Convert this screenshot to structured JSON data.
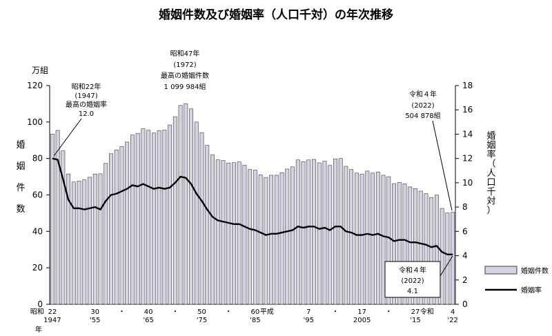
{
  "title": "婚姻件数及び婚姻率（人口千対）の年次推移",
  "y_left_unit": "万組",
  "y_left_label_chars": [
    "婚",
    "姻",
    "件",
    "数"
  ],
  "y_right_label_chars": [
    "婚",
    "姻",
    "率",
    "（",
    "人",
    "口",
    "千",
    "対",
    "）"
  ],
  "legend": {
    "bars": "婚姻件数",
    "line": "婚姻率"
  },
  "x_labels_top": [
    {
      "year": 1947,
      "text": "22"
    },
    {
      "year": 1955,
      "text": "30"
    },
    {
      "year": 1960,
      "text": "・"
    },
    {
      "year": 1965,
      "text": "40"
    },
    {
      "year": 1970,
      "text": "・"
    },
    {
      "year": 1975,
      "text": "50"
    },
    {
      "year": 1980,
      "text": "・"
    },
    {
      "year": 1985,
      "text": "60"
    },
    {
      "year": 1995,
      "text": "7"
    },
    {
      "year": 2000,
      "text": "・"
    },
    {
      "year": 2005,
      "text": "17"
    },
    {
      "year": 2010,
      "text": "・"
    },
    {
      "year": 2015,
      "text": "27"
    },
    {
      "year": 2022,
      "text": "4"
    }
  ],
  "x_labels_bottom": [
    {
      "year": 1947,
      "text": "1947"
    },
    {
      "year": 1955,
      "text": "'55"
    },
    {
      "year": 1965,
      "text": "'65"
    },
    {
      "year": 1975,
      "text": "'75"
    },
    {
      "year": 1985,
      "text": "'85"
    },
    {
      "year": 1995,
      "text": "'95"
    },
    {
      "year": 2005,
      "text": "2005"
    },
    {
      "year": 2015,
      "text": "'15"
    },
    {
      "year": 2022,
      "text": "'22"
    }
  ],
  "era_labels": [
    {
      "year": 1947,
      "text": "昭和",
      "row": "left"
    },
    {
      "year": 1989,
      "text": "平成",
      "row": "top"
    },
    {
      "year": 2019,
      "text": "令和",
      "row": "top"
    }
  ],
  "x_axis_suffix": "年",
  "annotations": {
    "peak_rate": [
      "昭和22年",
      "(1947)",
      "最高の婚姻率",
      "12.0"
    ],
    "peak_count": [
      "昭和47年",
      "(1972)",
      "最高の婚姻件数",
      "1 099 984組"
    ],
    "latest_count": [
      "令和４年",
      "(2022)",
      "504 878組"
    ],
    "latest_rate": [
      "令和４年",
      "(2022)",
      "4.1"
    ]
  },
  "colors": {
    "bar_fill": "#d6d2e4",
    "bar_stroke": "#3a3a3a",
    "line": "#000000",
    "axis": "#000000"
  },
  "chart_data": {
    "type": "bar+line",
    "title": "婚姻件数及び婚姻率（人口千対）の年次推移",
    "x": [
      1947,
      1948,
      1949,
      1950,
      1951,
      1952,
      1953,
      1954,
      1955,
      1956,
      1957,
      1958,
      1959,
      1960,
      1961,
      1962,
      1963,
      1964,
      1965,
      1966,
      1967,
      1968,
      1969,
      1970,
      1971,
      1972,
      1973,
      1974,
      1975,
      1976,
      1977,
      1978,
      1979,
      1980,
      1981,
      1982,
      1983,
      1984,
      1985,
      1986,
      1987,
      1988,
      1989,
      1990,
      1991,
      1992,
      1993,
      1994,
      1995,
      1996,
      1997,
      1998,
      1999,
      2000,
      2001,
      2002,
      2003,
      2004,
      2005,
      2006,
      2007,
      2008,
      2009,
      2010,
      2011,
      2012,
      2013,
      2014,
      2015,
      2016,
      2017,
      2018,
      2019,
      2020,
      2021,
      2022
    ],
    "series": [
      {
        "name": "婚姻件数",
        "type": "bar",
        "axis": "left",
        "unit": "万組",
        "values": [
          93.4,
          95.4,
          84.2,
          71.5,
          67.1,
          67.6,
          68.3,
          69.7,
          71.5,
          71.6,
          77.3,
          82.6,
          84.7,
          86.6,
          89.0,
          92.9,
          93.8,
          96.3,
          95.5,
          94.0,
          95.3,
          95.6,
          98.4,
          102.9,
          109.1,
          110.0,
          107.2,
          100.0,
          94.2,
          87.2,
          82.1,
          79.3,
          78.9,
          77.5,
          77.7,
          78.1,
          76.3,
          74.0,
          73.6,
          71.0,
          69.6,
          70.8,
          70.8,
          72.2,
          74.2,
          75.4,
          79.2,
          78.2,
          79.2,
          79.5,
          77.6,
          78.5,
          76.2,
          79.8,
          80.0,
          75.7,
          74.0,
          72.0,
          71.4,
          73.1,
          72.0,
          72.6,
          70.8,
          70.0,
          66.2,
          66.9,
          66.1,
          64.4,
          63.5,
          62.1,
          60.7,
          58.6,
          59.9,
          52.6,
          50.1,
          50.5
        ]
      },
      {
        "name": "婚姻率",
        "type": "line",
        "axis": "right",
        "unit": "人口千対",
        "values": [
          12.0,
          11.9,
          10.3,
          8.6,
          7.9,
          7.9,
          7.8,
          7.9,
          8.0,
          7.8,
          8.5,
          9.0,
          9.1,
          9.3,
          9.5,
          9.8,
          9.7,
          9.9,
          9.7,
          9.5,
          9.6,
          9.5,
          9.6,
          10.0,
          10.5,
          10.4,
          9.9,
          9.1,
          8.5,
          7.8,
          7.2,
          6.9,
          6.8,
          6.7,
          6.6,
          6.6,
          6.4,
          6.2,
          6.1,
          5.9,
          5.7,
          5.8,
          5.8,
          5.9,
          6.0,
          6.1,
          6.4,
          6.3,
          6.4,
          6.4,
          6.2,
          6.3,
          6.1,
          6.4,
          6.4,
          6.0,
          5.9,
          5.7,
          5.7,
          5.8,
          5.7,
          5.8,
          5.6,
          5.5,
          5.2,
          5.3,
          5.3,
          5.1,
          5.1,
          5.0,
          4.9,
          4.7,
          4.8,
          4.3,
          4.1,
          4.1
        ]
      }
    ],
    "y_left": {
      "min": 0,
      "max": 120,
      "ticks": [
        0,
        20,
        40,
        60,
        80,
        100,
        120
      ]
    },
    "y_right": {
      "min": 0,
      "max": 18,
      "ticks": [
        0,
        2,
        4,
        6,
        8,
        10,
        12,
        14,
        16,
        18
      ]
    },
    "legend_position": "right"
  }
}
